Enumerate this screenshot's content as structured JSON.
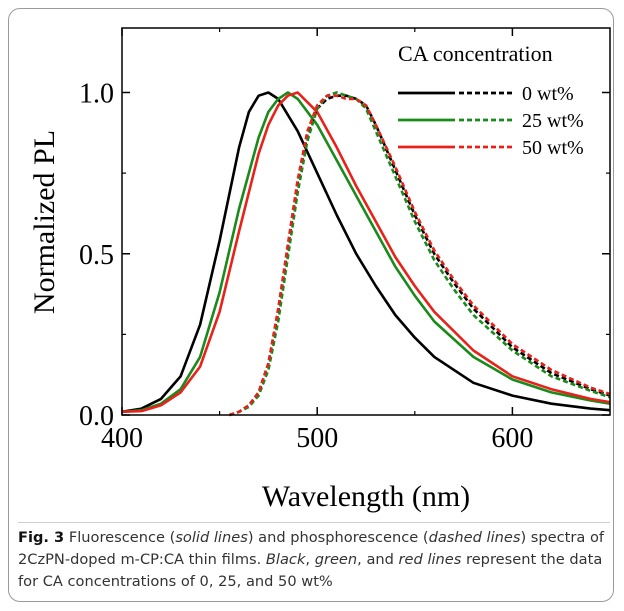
{
  "chart_data": {
    "type": "line",
    "xlabel": "Wavelength (nm)",
    "ylabel": "Normalized PL",
    "xlim": [
      400,
      650
    ],
    "ylim": [
      0.0,
      1.2
    ],
    "xticks": [
      400,
      500,
      600
    ],
    "xtick_labels": [
      "400",
      "500",
      "600"
    ],
    "yticks": [
      0.0,
      0.5,
      1.0
    ],
    "ytick_labels": [
      "0.0",
      "0.5",
      "1.0"
    ],
    "legend": {
      "title": "CA concentration",
      "placement": "top-right",
      "entries": [
        "0 wt%",
        "25 wt%",
        "50 wt%"
      ]
    },
    "series": [
      {
        "name": "0 wt%",
        "style": "solid",
        "color": "#000000",
        "x": [
          400,
          410,
          420,
          430,
          440,
          450,
          460,
          465,
          470,
          475,
          480,
          490,
          500,
          510,
          520,
          530,
          540,
          550,
          560,
          580,
          600,
          620,
          640,
          650
        ],
        "y": [
          0.01,
          0.02,
          0.05,
          0.12,
          0.28,
          0.54,
          0.83,
          0.94,
          0.99,
          1.0,
          0.98,
          0.88,
          0.75,
          0.62,
          0.5,
          0.4,
          0.31,
          0.24,
          0.18,
          0.1,
          0.06,
          0.035,
          0.02,
          0.015
        ]
      },
      {
        "name": "25 wt%",
        "style": "solid",
        "color": "#1a8a1a",
        "x": [
          400,
          410,
          420,
          430,
          440,
          450,
          460,
          470,
          475,
          480,
          485,
          490,
          500,
          510,
          520,
          530,
          540,
          550,
          560,
          580,
          600,
          620,
          640,
          650
        ],
        "y": [
          0.01,
          0.015,
          0.035,
          0.08,
          0.18,
          0.38,
          0.64,
          0.86,
          0.94,
          0.98,
          1.0,
          0.98,
          0.9,
          0.79,
          0.68,
          0.57,
          0.46,
          0.37,
          0.29,
          0.18,
          0.11,
          0.07,
          0.045,
          0.035
        ]
      },
      {
        "name": "50 wt%",
        "style": "solid",
        "color": "#e8221b",
        "x": [
          400,
          410,
          420,
          430,
          440,
          450,
          460,
          470,
          475,
          480,
          485,
          490,
          500,
          510,
          520,
          530,
          540,
          550,
          560,
          580,
          600,
          620,
          640,
          650
        ],
        "y": [
          0.01,
          0.012,
          0.03,
          0.07,
          0.15,
          0.32,
          0.57,
          0.81,
          0.9,
          0.96,
          0.99,
          1.0,
          0.94,
          0.83,
          0.71,
          0.6,
          0.49,
          0.4,
          0.32,
          0.2,
          0.12,
          0.08,
          0.05,
          0.04
        ]
      },
      {
        "name": "0 wt%",
        "style": "dashed",
        "color": "#000000",
        "x": [
          455,
          460,
          465,
          470,
          475,
          480,
          485,
          490,
          495,
          500,
          505,
          510,
          515,
          520,
          525,
          530,
          540,
          550,
          560,
          570,
          580,
          600,
          620,
          640,
          650
        ],
        "y": [
          0.0,
          0.01,
          0.03,
          0.07,
          0.16,
          0.32,
          0.52,
          0.72,
          0.87,
          0.95,
          0.98,
          0.99,
          0.99,
          0.98,
          0.96,
          0.9,
          0.76,
          0.62,
          0.5,
          0.41,
          0.33,
          0.21,
          0.13,
          0.08,
          0.06
        ]
      },
      {
        "name": "25 wt%",
        "style": "dashed",
        "color": "#1a8a1a",
        "x": [
          455,
          460,
          465,
          470,
          475,
          480,
          485,
          490,
          495,
          500,
          505,
          510,
          515,
          520,
          525,
          530,
          540,
          550,
          560,
          570,
          580,
          600,
          620,
          640,
          650
        ],
        "y": [
          0.0,
          0.01,
          0.025,
          0.06,
          0.14,
          0.29,
          0.49,
          0.69,
          0.85,
          0.95,
          0.99,
          1.0,
          0.99,
          0.98,
          0.95,
          0.88,
          0.74,
          0.6,
          0.48,
          0.39,
          0.31,
          0.2,
          0.12,
          0.075,
          0.055
        ]
      },
      {
        "name": "50 wt%",
        "style": "dashed",
        "color": "#e8221b",
        "x": [
          455,
          460,
          465,
          470,
          475,
          480,
          485,
          490,
          495,
          500,
          505,
          510,
          515,
          520,
          525,
          530,
          540,
          550,
          560,
          570,
          580,
          600,
          620,
          640,
          650
        ],
        "y": [
          0.0,
          0.01,
          0.03,
          0.07,
          0.16,
          0.33,
          0.53,
          0.73,
          0.88,
          0.96,
          0.99,
          0.99,
          0.98,
          0.98,
          0.96,
          0.9,
          0.77,
          0.63,
          0.51,
          0.42,
          0.34,
          0.22,
          0.14,
          0.085,
          0.065
        ]
      }
    ]
  },
  "caption": {
    "label": "Fig. 3",
    "t1": " Fluorescence (",
    "i1": "solid lines",
    "t2": ") and phosphorescence (",
    "i2": "dashed lines",
    "t3": ") spectra of 2CzPN-doped m-CP:CA thin films. ",
    "i3": "Black",
    "t4": ", ",
    "i4": "green",
    "t5": ", and ",
    "i5": "red",
    "t6": " ",
    "i6": "lines",
    "t7": " represent the data for CA concentrations of 0, 25, and 50 wt%"
  }
}
